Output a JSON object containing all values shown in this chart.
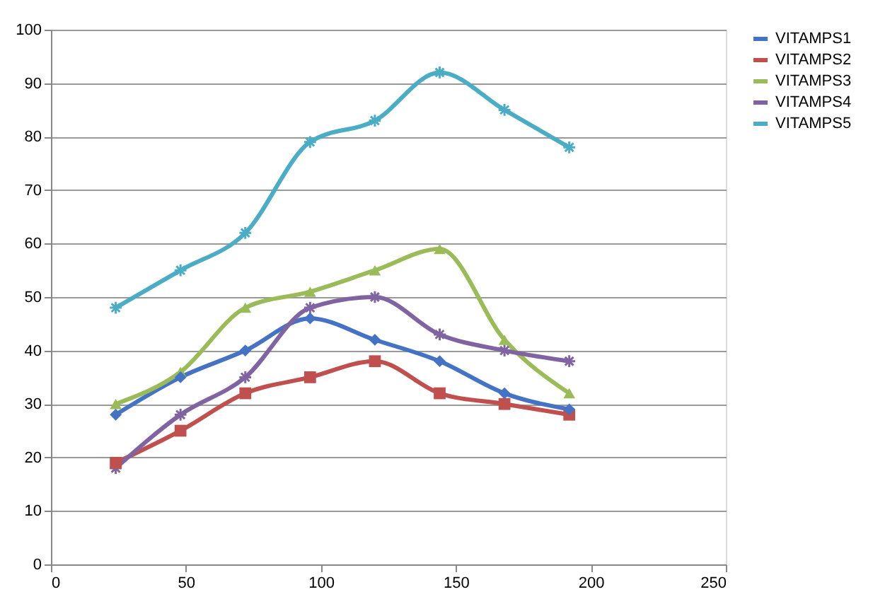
{
  "chart_data": {
    "type": "line",
    "x": [
      24,
      48,
      72,
      96,
      120,
      144,
      168,
      192
    ],
    "series": [
      {
        "name": "VITAMPS1",
        "color": "#4472c4",
        "marker": "diamond",
        "values": [
          28,
          35,
          40,
          46,
          42,
          38,
          32,
          29
        ]
      },
      {
        "name": "VITAMPS2",
        "color": "#c0504d",
        "marker": "square",
        "values": [
          19,
          25,
          32,
          35,
          38,
          32,
          30,
          28
        ]
      },
      {
        "name": "VITAMPS3",
        "color": "#9bbb59",
        "marker": "triangle",
        "values": [
          30,
          36,
          48,
          51,
          55,
          59,
          42,
          32
        ]
      },
      {
        "name": "VITAMPS4",
        "color": "#8064a2",
        "marker": "cross",
        "values": [
          18,
          28,
          35,
          48,
          50,
          43,
          40,
          38
        ]
      },
      {
        "name": "VITAMPS5",
        "color": "#4bacc6",
        "marker": "cross",
        "values": [
          48,
          55,
          62,
          79,
          83,
          92,
          85,
          78
        ]
      }
    ],
    "xlim": [
      0,
      250
    ],
    "xticks": [
      0,
      50,
      100,
      150,
      200,
      250
    ],
    "ylim": [
      0,
      100
    ],
    "yticks": [
      0,
      10,
      20,
      30,
      40,
      50,
      60,
      70,
      80,
      90,
      100
    ],
    "grid": "y",
    "legend": "right",
    "line_style": "solid"
  }
}
